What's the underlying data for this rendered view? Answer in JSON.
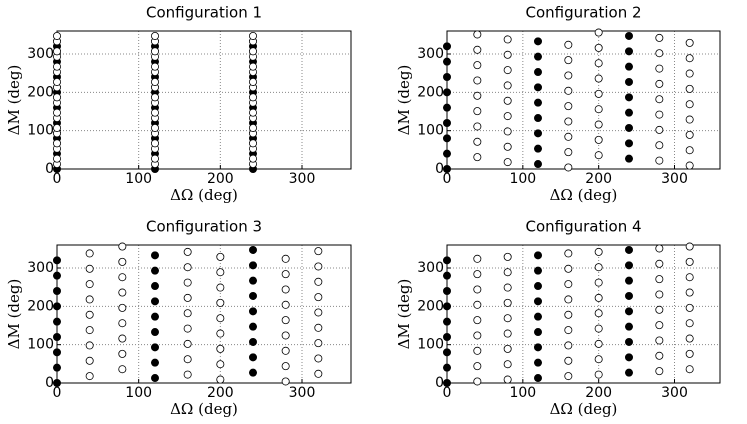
{
  "chart_data": [
    {
      "type": "scatter",
      "title": "Configuration 1",
      "x_label": "ΔΩ (deg)",
      "y_label": "ΔM (deg)",
      "xlim": [
        0,
        360
      ],
      "ylim": [
        0,
        360
      ],
      "xticks": [
        0,
        100,
        200,
        300
      ],
      "yticks": [
        0,
        100,
        200,
        300
      ],
      "grid": true,
      "series": [
        {
          "x": 0,
          "filled": true,
          "color": "#000000",
          "values": [
            0,
            40,
            80,
            120,
            160,
            200,
            240,
            280,
            320
          ]
        },
        {
          "x": 120,
          "filled": true,
          "color": "#000000",
          "values": [
            0,
            40,
            80,
            120,
            160,
            200,
            240,
            280,
            320
          ]
        },
        {
          "x": 240,
          "filled": true,
          "color": "#000000",
          "values": [
            0,
            40,
            80,
            120,
            160,
            200,
            240,
            280,
            320
          ]
        },
        {
          "x": 0,
          "filled": false,
          "color": "#000000",
          "values": [
            13,
            27,
            53,
            67,
            93,
            107,
            133,
            147,
            173,
            187,
            213,
            227,
            253,
            267,
            293,
            307,
            333,
            347
          ]
        },
        {
          "x": 120,
          "filled": false,
          "color": "#000000",
          "values": [
            13,
            27,
            53,
            67,
            93,
            107,
            133,
            147,
            173,
            187,
            213,
            227,
            253,
            267,
            293,
            307,
            333,
            347
          ]
        },
        {
          "x": 240,
          "filled": false,
          "color": "#000000",
          "values": [
            13,
            27,
            53,
            67,
            93,
            107,
            133,
            147,
            173,
            187,
            213,
            227,
            253,
            267,
            293,
            307,
            333,
            347
          ]
        }
      ]
    },
    {
      "type": "scatter",
      "title": "Configuration 2",
      "x_label": "ΔΩ (deg)",
      "y_label": "ΔM (deg)",
      "xlim": [
        0,
        360
      ],
      "ylim": [
        0,
        360
      ],
      "xticks": [
        0,
        100,
        200,
        300
      ],
      "yticks": [
        0,
        100,
        200,
        300
      ],
      "grid": true,
      "series": [
        {
          "x": 0,
          "filled": true,
          "color": "#000000",
          "values": [
            0,
            40,
            80,
            120,
            160,
            200,
            240,
            280,
            320
          ]
        },
        {
          "x": 120,
          "filled": true,
          "color": "#000000",
          "values": [
            13,
            53,
            93,
            133,
            173,
            213,
            253,
            293,
            333
          ]
        },
        {
          "x": 240,
          "filled": true,
          "color": "#000000",
          "values": [
            27,
            67,
            107,
            147,
            187,
            227,
            267,
            307,
            347
          ]
        },
        {
          "x": 40,
          "filled": false,
          "color": "#000000",
          "values": [
            31,
            71,
            111,
            151,
            191,
            231,
            271,
            311,
            351
          ]
        },
        {
          "x": 80,
          "filled": false,
          "color": "#000000",
          "values": [
            18,
            58,
            98,
            138,
            178,
            218,
            258,
            298,
            338
          ]
        },
        {
          "x": 160,
          "filled": false,
          "color": "#000000",
          "values": [
            4,
            44,
            84,
            124,
            164,
            204,
            244,
            284,
            324
          ]
        },
        {
          "x": 200,
          "filled": false,
          "color": "#000000",
          "values": [
            36,
            76,
            116,
            156,
            196,
            236,
            276,
            316,
            356
          ]
        },
        {
          "x": 280,
          "filled": false,
          "color": "#000000",
          "values": [
            22,
            62,
            102,
            142,
            182,
            222,
            262,
            302,
            342
          ]
        },
        {
          "x": 320,
          "filled": false,
          "color": "#000000",
          "values": [
            9,
            49,
            89,
            129,
            169,
            209,
            249,
            289,
            329
          ]
        }
      ]
    },
    {
      "type": "scatter",
      "title": "Configuration 3",
      "x_label": "ΔΩ (deg)",
      "y_label": "ΔM (deg)",
      "xlim": [
        0,
        360
      ],
      "ylim": [
        0,
        360
      ],
      "xticks": [
        0,
        100,
        200,
        300
      ],
      "yticks": [
        0,
        100,
        200,
        300
      ],
      "grid": true,
      "series": [
        {
          "x": 0,
          "filled": true,
          "color": "#000000",
          "values": [
            0,
            40,
            80,
            120,
            160,
            200,
            240,
            280,
            320
          ]
        },
        {
          "x": 120,
          "filled": true,
          "color": "#000000",
          "values": [
            13,
            53,
            93,
            133,
            173,
            213,
            253,
            293,
            333
          ]
        },
        {
          "x": 240,
          "filled": true,
          "color": "#000000",
          "values": [
            27,
            67,
            107,
            147,
            187,
            227,
            267,
            307,
            347
          ]
        },
        {
          "x": 40,
          "filled": false,
          "color": "#000000",
          "values": [
            18,
            58,
            98,
            138,
            178,
            218,
            258,
            298,
            338
          ]
        },
        {
          "x": 80,
          "filled": false,
          "color": "#000000",
          "values": [
            36,
            76,
            116,
            156,
            196,
            236,
            276,
            316,
            356
          ]
        },
        {
          "x": 160,
          "filled": false,
          "color": "#000000",
          "values": [
            22,
            62,
            102,
            142,
            182,
            222,
            262,
            302,
            342
          ]
        },
        {
          "x": 200,
          "filled": false,
          "color": "#000000",
          "values": [
            9,
            49,
            89,
            129,
            169,
            209,
            249,
            289,
            329
          ]
        },
        {
          "x": 280,
          "filled": false,
          "color": "#000000",
          "values": [
            4,
            44,
            84,
            124,
            164,
            204,
            244,
            284,
            324
          ]
        },
        {
          "x": 320,
          "filled": false,
          "color": "#000000",
          "values": [
            24,
            64,
            104,
            144,
            184,
            224,
            264,
            304,
            344
          ]
        }
      ]
    },
    {
      "type": "scatter",
      "title": "Configuration 4",
      "x_label": "ΔΩ (deg)",
      "y_label": "ΔM (deg)",
      "xlim": [
        0,
        360
      ],
      "ylim": [
        0,
        360
      ],
      "xticks": [
        0,
        100,
        200,
        300
      ],
      "yticks": [
        0,
        100,
        200,
        300
      ],
      "grid": true,
      "series": [
        {
          "x": 0,
          "filled": true,
          "color": "#000000",
          "values": [
            0,
            40,
            80,
            120,
            160,
            200,
            240,
            280,
            320
          ]
        },
        {
          "x": 120,
          "filled": true,
          "color": "#000000",
          "values": [
            13,
            53,
            93,
            133,
            173,
            213,
            253,
            293,
            333
          ]
        },
        {
          "x": 240,
          "filled": true,
          "color": "#000000",
          "values": [
            27,
            67,
            107,
            147,
            187,
            227,
            267,
            307,
            347
          ]
        },
        {
          "x": 40,
          "filled": false,
          "color": "#000000",
          "values": [
            4,
            44,
            84,
            124,
            164,
            204,
            244,
            284,
            324
          ]
        },
        {
          "x": 80,
          "filled": false,
          "color": "#000000",
          "values": [
            9,
            49,
            89,
            129,
            169,
            209,
            249,
            289,
            329
          ]
        },
        {
          "x": 160,
          "filled": false,
          "color": "#000000",
          "values": [
            18,
            58,
            98,
            138,
            178,
            218,
            258,
            298,
            338
          ]
        },
        {
          "x": 200,
          "filled": false,
          "color": "#000000",
          "values": [
            22,
            62,
            102,
            142,
            182,
            222,
            262,
            302,
            342
          ]
        },
        {
          "x": 280,
          "filled": false,
          "color": "#000000",
          "values": [
            31,
            71,
            111,
            151,
            191,
            231,
            271,
            311,
            351
          ]
        },
        {
          "x": 320,
          "filled": false,
          "color": "#000000",
          "values": [
            36,
            76,
            116,
            156,
            196,
            236,
            276,
            316,
            356
          ]
        }
      ]
    }
  ]
}
